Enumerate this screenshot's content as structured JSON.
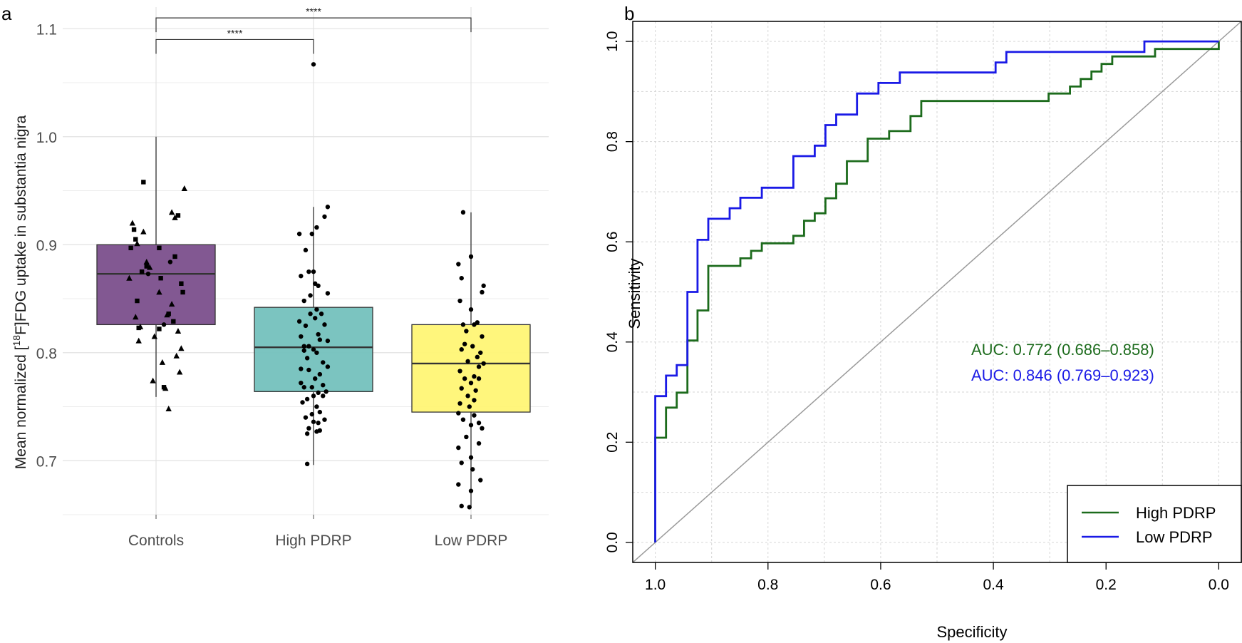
{
  "chart_data": [
    {
      "panel_label": "a",
      "type": "box",
      "ylabel_pre": "Mean normalized [",
      "ylabel_sup": "18",
      "ylabel_post": "F]FDG uptake in substantia nigra",
      "xlabel": "",
      "ylim": [
        0.65,
        1.12
      ],
      "yticks": [
        "0.7",
        "0.8",
        "0.9",
        "1.0",
        "1.1"
      ],
      "categories": [
        "Controls",
        "High PDRP",
        "Low PDRP"
      ],
      "colors": [
        "#7b4f8c",
        "#74c1bd",
        "#fff575"
      ],
      "boxes": [
        {
          "name": "Controls",
          "q1": 0.826,
          "median": 0.873,
          "q3": 0.9,
          "whisker_low": 0.759,
          "whisker_high": 1.0
        },
        {
          "name": "High PDRP",
          "q1": 0.764,
          "median": 0.805,
          "q3": 0.842,
          "whisker_low": 0.696,
          "whisker_high": 0.935
        },
        {
          "name": "Low PDRP",
          "q1": 0.745,
          "median": 0.79,
          "q3": 0.826,
          "whisker_low": 0.658,
          "whisker_high": 0.93
        }
      ],
      "outliers": [
        {
          "group": "High PDRP",
          "value": 1.067
        }
      ],
      "points": {
        "Controls": {
          "triangles": [
            [
              -0.12,
              0.901
            ],
            [
              0.18,
              0.952
            ],
            [
              0.1,
              0.93
            ],
            [
              -0.15,
              0.92
            ],
            [
              -0.08,
              0.912
            ],
            [
              -0.17,
              0.869
            ],
            [
              -0.06,
              0.884
            ],
            [
              0.02,
              0.856
            ],
            [
              0.1,
              0.845
            ],
            [
              -0.13,
              0.833
            ],
            [
              0.07,
              0.835
            ],
            [
              -0.1,
              0.824
            ],
            [
              0.14,
              0.82
            ],
            [
              -0.01,
              0.815
            ],
            [
              -0.11,
              0.811
            ],
            [
              0.13,
              0.797
            ],
            [
              0.04,
              0.791
            ],
            [
              0.15,
              0.782
            ],
            [
              0.06,
              0.767
            ],
            [
              -0.02,
              0.774
            ],
            [
              0.08,
              0.748
            ],
            [
              0.12,
              0.925
            ],
            [
              -0.04,
              0.879
            ],
            [
              0.16,
              0.804
            ]
          ],
          "squares": [
            [
              -0.08,
              0.958
            ],
            [
              0.14,
              0.927
            ],
            [
              -0.14,
              0.914
            ],
            [
              -0.13,
              0.905
            ],
            [
              -0.16,
              0.897
            ],
            [
              0.02,
              0.897
            ],
            [
              0.12,
              0.889
            ],
            [
              -0.06,
              0.88
            ],
            [
              -0.09,
              0.875
            ],
            [
              0.16,
              0.864
            ],
            [
              0.03,
              0.869
            ],
            [
              -0.12,
              0.848
            ],
            [
              0.08,
              0.836
            ],
            [
              0.02,
              0.822
            ],
            [
              -0.11,
              0.823
            ],
            [
              0.17,
              0.856
            ],
            [
              0.05,
              0.768
            ],
            [
              0.11,
              0.829
            ]
          ],
          "circles": [
            [
              -0.05,
              0.873
            ],
            [
              0.09,
              0.884
            ],
            [
              0.05,
              0.826
            ]
          ]
        },
        "High PDRP": {
          "circles": [
            [
              0.0,
              1.067
            ],
            [
              0.09,
              0.935
            ],
            [
              0.07,
              0.926
            ],
            [
              0.02,
              0.916
            ],
            [
              -0.01,
              0.91
            ],
            [
              -0.09,
              0.91
            ],
            [
              -0.05,
              0.895
            ],
            [
              -0.03,
              0.875
            ],
            [
              0.0,
              0.875
            ],
            [
              -0.08,
              0.871
            ],
            [
              0.01,
              0.864
            ],
            [
              0.03,
              0.862
            ],
            [
              -0.02,
              0.853
            ],
            [
              -0.06,
              0.848
            ],
            [
              0.09,
              0.855
            ],
            [
              0.02,
              0.84
            ],
            [
              -0.02,
              0.836
            ],
            [
              0.05,
              0.836
            ],
            [
              0.01,
              0.832
            ],
            [
              -0.09,
              0.829
            ],
            [
              0.07,
              0.826
            ],
            [
              -0.05,
              0.825
            ],
            [
              0.03,
              0.817
            ],
            [
              -0.08,
              0.815
            ],
            [
              0.04,
              0.812
            ],
            [
              0.09,
              0.811
            ],
            [
              -0.06,
              0.806
            ],
            [
              -0.03,
              0.806
            ],
            [
              0.0,
              0.803
            ],
            [
              -0.06,
              0.802
            ],
            [
              0.02,
              0.8
            ],
            [
              -0.04,
              0.795
            ],
            [
              0.06,
              0.791
            ],
            [
              0.09,
              0.787
            ],
            [
              -0.08,
              0.785
            ],
            [
              -0.03,
              0.784
            ],
            [
              0.04,
              0.78
            ],
            [
              0.01,
              0.776
            ],
            [
              -0.08,
              0.772
            ],
            [
              0.06,
              0.77
            ],
            [
              -0.06,
              0.768
            ],
            [
              -0.01,
              0.768
            ],
            [
              0.08,
              0.764
            ],
            [
              0.03,
              0.763
            ],
            [
              0.06,
              0.76
            ],
            [
              -0.04,
              0.757
            ],
            [
              -0.07,
              0.754
            ],
            [
              0.02,
              0.75
            ],
            [
              0.04,
              0.745
            ],
            [
              -0.01,
              0.743
            ],
            [
              -0.05,
              0.74
            ],
            [
              0.07,
              0.738
            ],
            [
              0.0,
              0.736
            ],
            [
              0.03,
              0.735
            ],
            [
              -0.03,
              0.73
            ],
            [
              0.04,
              0.728
            ],
            [
              0.02,
              0.727
            ],
            [
              -0.04,
              0.725
            ],
            [
              0.0,
              0.76
            ],
            [
              -0.04,
              0.697
            ]
          ]
        },
        "Low PDRP": {
          "circles": [
            [
              -0.05,
              0.93
            ],
            [
              -0.08,
              0.882
            ],
            [
              0.0,
              0.889
            ],
            [
              -0.06,
              0.869
            ],
            [
              0.08,
              0.862
            ],
            [
              0.07,
              0.856
            ],
            [
              -0.07,
              0.848
            ],
            [
              0.0,
              0.84
            ],
            [
              0.04,
              0.828
            ],
            [
              -0.05,
              0.826
            ],
            [
              0.02,
              0.826
            ],
            [
              -0.03,
              0.82
            ],
            [
              0.07,
              0.815
            ],
            [
              -0.04,
              0.808
            ],
            [
              0.01,
              0.806
            ],
            [
              -0.06,
              0.803
            ],
            [
              0.06,
              0.8
            ],
            [
              0.04,
              0.796
            ],
            [
              -0.02,
              0.792
            ],
            [
              0.08,
              0.79
            ],
            [
              0.05,
              0.787
            ],
            [
              -0.07,
              0.783
            ],
            [
              0.02,
              0.778
            ],
            [
              -0.04,
              0.776
            ],
            [
              0.05,
              0.776
            ],
            [
              0.0,
              0.772
            ],
            [
              -0.06,
              0.767
            ],
            [
              0.03,
              0.765
            ],
            [
              -0.02,
              0.76
            ],
            [
              0.02,
              0.756
            ],
            [
              -0.07,
              0.753
            ],
            [
              -0.01,
              0.75
            ],
            [
              -0.08,
              0.744
            ],
            [
              0.02,
              0.742
            ],
            [
              -0.05,
              0.738
            ],
            [
              0.05,
              0.735
            ],
            [
              0.0,
              0.733
            ],
            [
              0.07,
              0.73
            ],
            [
              -0.03,
              0.722
            ],
            [
              0.05,
              0.716
            ],
            [
              -0.08,
              0.712
            ],
            [
              0.0,
              0.703
            ],
            [
              -0.06,
              0.698
            ],
            [
              0.01,
              0.692
            ],
            [
              0.06,
              0.682
            ],
            [
              -0.08,
              0.678
            ],
            [
              0.0,
              0.672
            ],
            [
              -0.06,
              0.658
            ],
            [
              -0.01,
              0.657
            ]
          ]
        }
      },
      "significance": [
        {
          "from": "Controls",
          "to": "High PDRP",
          "label": "****",
          "y": 1.09
        },
        {
          "from": "Controls",
          "to": "Low PDRP",
          "label": "****",
          "y": 1.11
        }
      ]
    },
    {
      "panel_label": "b",
      "type": "line",
      "xlabel": "Specificity",
      "ylabel": "Sensitivity",
      "xlim": [
        1.04,
        -0.04
      ],
      "ylim": [
        -0.04,
        1.04
      ],
      "xticks": [
        "1.0",
        "0.8",
        "0.6",
        "0.4",
        "0.2",
        "0.0"
      ],
      "yticks": [
        "0.0",
        "0.2",
        "0.4",
        "0.6",
        "0.8",
        "1.0"
      ],
      "legend": {
        "position": "bottom-right",
        "entries": [
          "High PDRP",
          "Low PDRP"
        ]
      },
      "series": [
        {
          "name": "High PDRP",
          "color": "#1c6b1c",
          "auc_label": "AUC: 0.772 (0.686–0.858)",
          "points": [
            [
              1.0,
              0.0
            ],
            [
              1.0,
              0.209
            ],
            [
              0.981,
              0.209
            ],
            [
              0.981,
              0.269
            ],
            [
              0.962,
              0.269
            ],
            [
              0.962,
              0.299
            ],
            [
              0.943,
              0.299
            ],
            [
              0.943,
              0.403
            ],
            [
              0.925,
              0.403
            ],
            [
              0.925,
              0.463
            ],
            [
              0.906,
              0.463
            ],
            [
              0.906,
              0.552
            ],
            [
              0.849,
              0.552
            ],
            [
              0.849,
              0.567
            ],
            [
              0.83,
              0.567
            ],
            [
              0.83,
              0.582
            ],
            [
              0.811,
              0.582
            ],
            [
              0.811,
              0.597
            ],
            [
              0.755,
              0.597
            ],
            [
              0.755,
              0.612
            ],
            [
              0.736,
              0.612
            ],
            [
              0.736,
              0.642
            ],
            [
              0.717,
              0.642
            ],
            [
              0.717,
              0.657
            ],
            [
              0.698,
              0.657
            ],
            [
              0.698,
              0.687
            ],
            [
              0.679,
              0.687
            ],
            [
              0.679,
              0.716
            ],
            [
              0.66,
              0.716
            ],
            [
              0.66,
              0.761
            ],
            [
              0.623,
              0.761
            ],
            [
              0.623,
              0.806
            ],
            [
              0.585,
              0.806
            ],
            [
              0.585,
              0.821
            ],
            [
              0.547,
              0.821
            ],
            [
              0.547,
              0.851
            ],
            [
              0.528,
              0.851
            ],
            [
              0.528,
              0.881
            ],
            [
              0.302,
              0.881
            ],
            [
              0.302,
              0.896
            ],
            [
              0.264,
              0.896
            ],
            [
              0.264,
              0.91
            ],
            [
              0.245,
              0.91
            ],
            [
              0.245,
              0.925
            ],
            [
              0.226,
              0.925
            ],
            [
              0.226,
              0.94
            ],
            [
              0.208,
              0.94
            ],
            [
              0.208,
              0.955
            ],
            [
              0.189,
              0.955
            ],
            [
              0.189,
              0.97
            ],
            [
              0.113,
              0.97
            ],
            [
              0.113,
              0.985
            ],
            [
              0.0,
              0.985
            ],
            [
              0.0,
              1.0
            ]
          ]
        },
        {
          "name": "Low PDRP",
          "color": "#1a1ae6",
          "auc_label": "AUC: 0.846 (0.769–0.923)",
          "points": [
            [
              1.0,
              0.0
            ],
            [
              1.0,
              0.292
            ],
            [
              0.981,
              0.292
            ],
            [
              0.981,
              0.333
            ],
            [
              0.962,
              0.333
            ],
            [
              0.962,
              0.354
            ],
            [
              0.943,
              0.354
            ],
            [
              0.943,
              0.5
            ],
            [
              0.925,
              0.5
            ],
            [
              0.925,
              0.604
            ],
            [
              0.906,
              0.604
            ],
            [
              0.906,
              0.646
            ],
            [
              0.868,
              0.646
            ],
            [
              0.868,
              0.667
            ],
            [
              0.849,
              0.667
            ],
            [
              0.849,
              0.688
            ],
            [
              0.811,
              0.688
            ],
            [
              0.811,
              0.708
            ],
            [
              0.755,
              0.708
            ],
            [
              0.755,
              0.771
            ],
            [
              0.717,
              0.771
            ],
            [
              0.717,
              0.792
            ],
            [
              0.698,
              0.792
            ],
            [
              0.698,
              0.833
            ],
            [
              0.679,
              0.833
            ],
            [
              0.679,
              0.854
            ],
            [
              0.642,
              0.854
            ],
            [
              0.642,
              0.896
            ],
            [
              0.604,
              0.896
            ],
            [
              0.604,
              0.917
            ],
            [
              0.566,
              0.917
            ],
            [
              0.566,
              0.938
            ],
            [
              0.396,
              0.938
            ],
            [
              0.396,
              0.958
            ],
            [
              0.377,
              0.958
            ],
            [
              0.377,
              0.979
            ],
            [
              0.132,
              0.979
            ],
            [
              0.132,
              1.0
            ],
            [
              0.0,
              1.0
            ]
          ]
        }
      ]
    }
  ]
}
